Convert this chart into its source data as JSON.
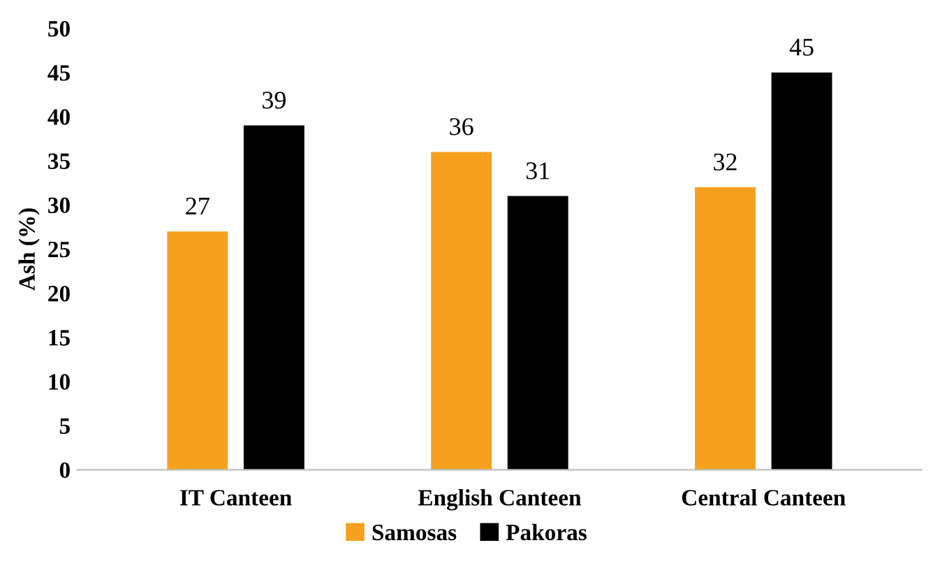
{
  "chart_data": {
    "type": "bar",
    "ylabel": "Ash (%)",
    "categories": [
      "IT Canteen",
      "English Canteen",
      "Central Canteen"
    ],
    "series": [
      {
        "name": "Samosas",
        "color": "#f7a020",
        "values": [
          27,
          36,
          32
        ]
      },
      {
        "name": "Pakoras",
        "color": "#000000",
        "values": [
          39,
          31,
          45
        ]
      }
    ],
    "ylim": [
      0,
      50
    ],
    "yticks": [
      0,
      5,
      10,
      15,
      20,
      25,
      30,
      35,
      40,
      45,
      50
    ],
    "grid": false,
    "legend": "bottom",
    "data_labels": true
  }
}
